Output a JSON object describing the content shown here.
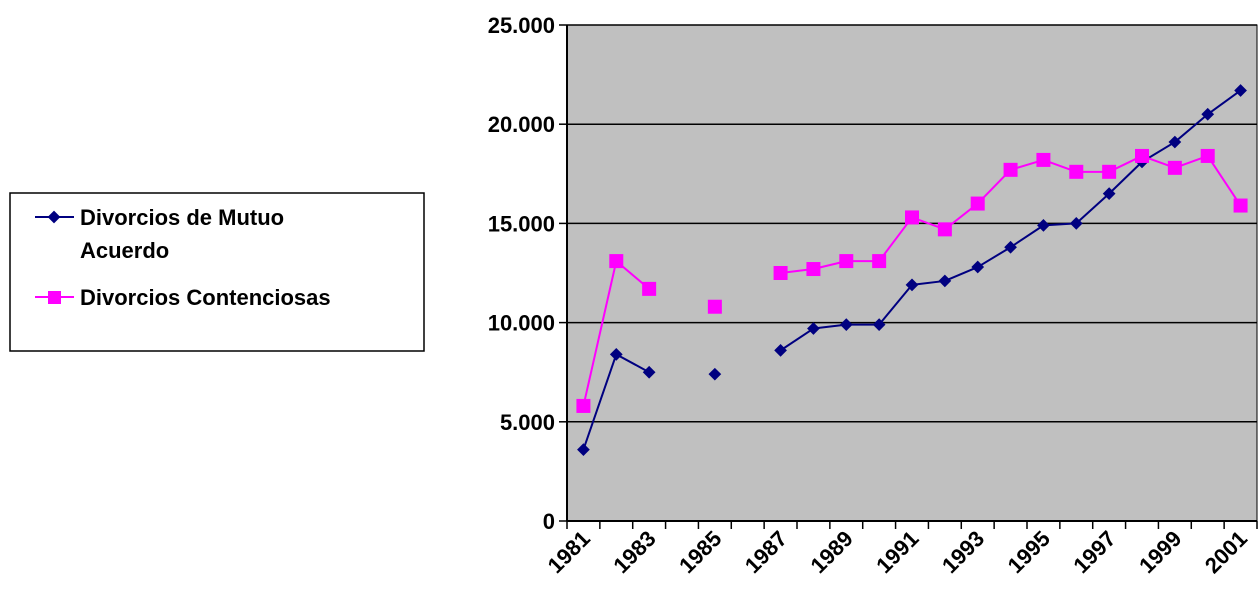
{
  "chart_data": {
    "type": "line",
    "title": "",
    "xlabel": "",
    "ylabel": "",
    "x": [
      1981,
      1982,
      1983,
      1984,
      1985,
      1986,
      1987,
      1988,
      1989,
      1990,
      1991,
      1992,
      1993,
      1994,
      1995,
      1996,
      1997,
      1998,
      1999,
      2000,
      2001
    ],
    "x_tick_labels": [
      "1981",
      "1983",
      "1985",
      "1987",
      "1989",
      "1991",
      "1993",
      "1995",
      "1997",
      "1999",
      "2001"
    ],
    "y_tick_labels": [
      "0",
      "5.000",
      "10.000",
      "15.000",
      "20.000",
      "25.000"
    ],
    "ylim": [
      0,
      25000
    ],
    "grid": "horizontal",
    "legend_position": "left",
    "plot_background": "#c0c0c0",
    "series": [
      {
        "name": "Divorcios de Mutuo Acuerdo",
        "legend_lines": [
          "Divorcios de Mutuo",
          "Acuerdo"
        ],
        "color": "#000080",
        "marker": "diamond",
        "values": [
          3600,
          8400,
          7500,
          null,
          7400,
          null,
          8600,
          9700,
          9900,
          9900,
          11900,
          12100,
          12800,
          13800,
          14900,
          15000,
          16500,
          18100,
          19100,
          20500,
          21700
        ]
      },
      {
        "name": "Divorcios Contenciosas",
        "legend_lines": [
          "Divorcios Contenciosas"
        ],
        "color": "#ff00ff",
        "marker": "square",
        "values": [
          5800,
          13100,
          11700,
          null,
          10800,
          null,
          12500,
          12700,
          13100,
          13100,
          15300,
          14700,
          16000,
          17700,
          18200,
          17600,
          17600,
          18400,
          17800,
          18400,
          15900
        ]
      }
    ]
  }
}
